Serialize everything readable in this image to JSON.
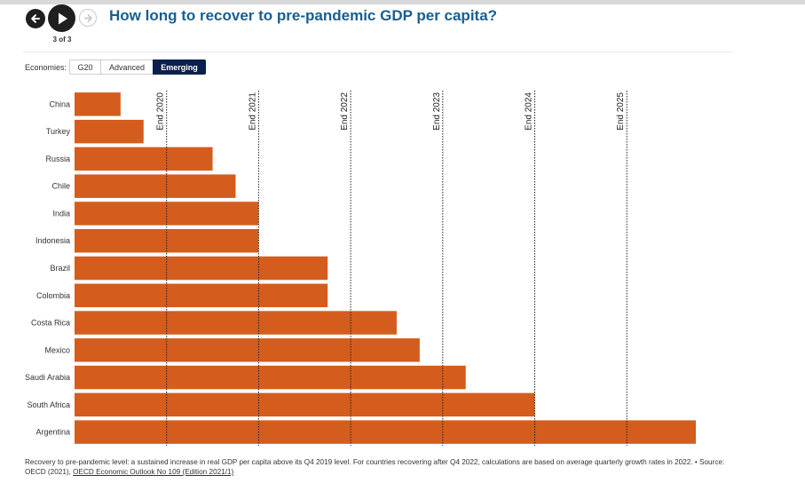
{
  "title": "How long to recover to pre-pandemic GDP per capita?",
  "nav": {
    "step_label": "3 of 3"
  },
  "economies": {
    "label": "Economies:",
    "options": [
      "G20",
      "Advanced",
      "Emerging"
    ],
    "selected": "Emerging"
  },
  "colors": {
    "bar": "#d45d1e",
    "title": "#1a5e8f",
    "selected_toggle": "#0b1f4a"
  },
  "chart_data": {
    "type": "bar",
    "orientation": "horizontal",
    "unit": "years from end of 2019",
    "categories": [
      "China",
      "Turkey",
      "Russia",
      "Chile",
      "India",
      "Indonesia",
      "Brazil",
      "Colombia",
      "Costa Rica",
      "Mexico",
      "Saudi Arabia",
      "South Africa",
      "Argentina"
    ],
    "values": [
      0.5,
      0.75,
      1.5,
      1.75,
      2.0,
      2.0,
      2.75,
      2.75,
      3.5,
      3.75,
      4.25,
      5.0,
      6.75
    ],
    "xlim": [
      0,
      6.75
    ],
    "reference_lines": [
      {
        "label": "End 2020",
        "value": 1
      },
      {
        "label": "End 2021",
        "value": 2
      },
      {
        "label": "End 2022",
        "value": 3
      },
      {
        "label": "End 2023",
        "value": 4
      },
      {
        "label": "End 2024",
        "value": 5
      },
      {
        "label": "End 2025",
        "value": 6
      }
    ]
  },
  "footnote": {
    "text": "Recovery to pre-pandemic level: a sustained increase in real GDP per capita above its Q4 2019 level. For countries recovering after Q4 2022, calculations are based on average quarterly growth rates in 2022. • Source: OECD (2021), ",
    "link": "OECD Economic Outlook No 109 (Edition 2021/1)"
  }
}
